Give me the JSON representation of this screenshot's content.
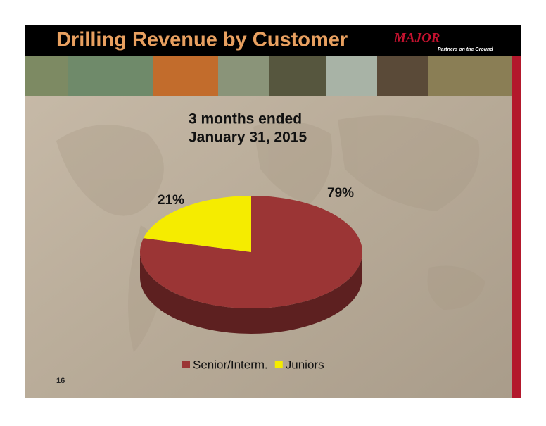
{
  "header": {
    "title": "Drilling Revenue by Customer",
    "logo": "MAJOR",
    "tagline": "Partners on the Ground"
  },
  "page_number": "16",
  "chart_data": {
    "type": "pie",
    "title": [
      "3 months ended",
      "January 31, 2015"
    ],
    "categories": [
      "Senior/Interm.",
      "Juniors"
    ],
    "values": [
      79,
      21
    ],
    "value_labels": [
      "79%",
      "21%"
    ],
    "colors": [
      "#9b3535",
      "#f5ec00"
    ],
    "legend": "bottom"
  }
}
